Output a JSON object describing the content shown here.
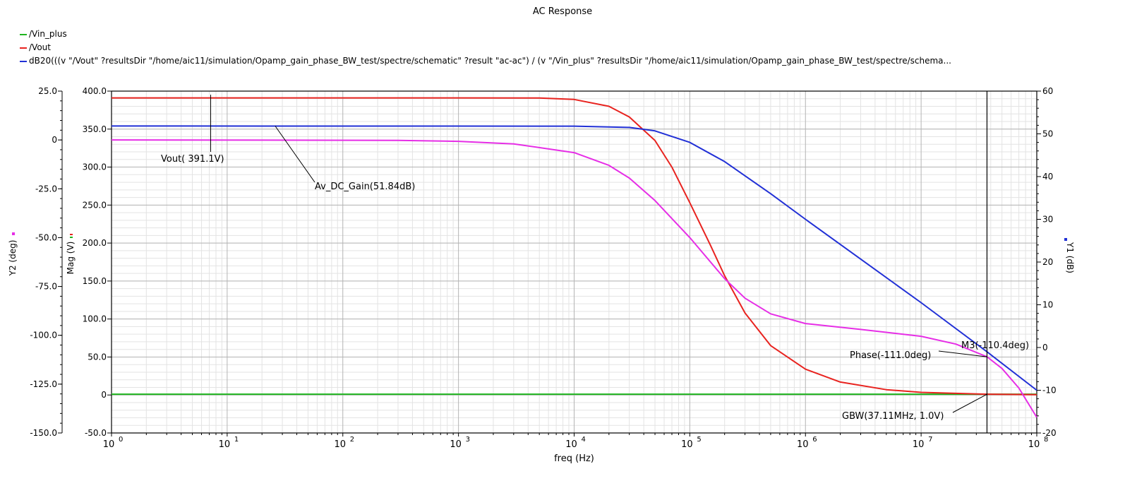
{
  "chart_data": {
    "type": "line",
    "title": "AC Response",
    "legend": [
      {
        "label": "/Vin_plus",
        "color": "#1fb51f"
      },
      {
        "label": "/Vout",
        "color": "#e8231f"
      },
      {
        "label": "dB20(((v \"/Vout\" ?resultsDir \"/home/aic11/simulation/Opamp_gain_phase_BW_test/spectre/schematic\" ?result \"ac-ac\") / (v \"/Vin_plus\" ?resultsDir \"/home/aic11/simulation/Opamp_gain_phase_BW_test/spectre/schema...",
        "color": "#2130d6"
      }
    ],
    "xlabel": "freq (Hz)",
    "x_scale": "log",
    "xlim": [
      1,
      100000000
    ],
    "x_ticks": [
      {
        "base": "10",
        "exp": "0"
      },
      {
        "base": "10",
        "exp": "1"
      },
      {
        "base": "10",
        "exp": "2"
      },
      {
        "base": "10",
        "exp": "3"
      },
      {
        "base": "10",
        "exp": "4"
      },
      {
        "base": "10",
        "exp": "5"
      },
      {
        "base": "10",
        "exp": "6"
      },
      {
        "base": "10",
        "exp": "7"
      },
      {
        "base": "10",
        "exp": "8"
      }
    ],
    "axes": {
      "mag": {
        "label": "Mag (V)",
        "lim": [
          -50,
          400
        ],
        "ticks": [
          -50,
          0,
          50,
          100,
          150,
          200,
          250,
          300,
          350,
          400
        ],
        "tick_labels": [
          "-50.0",
          "0",
          "50.0",
          "100.0",
          "150.0",
          "200.0",
          "250.0",
          "300.0",
          "350.0",
          "400.0"
        ]
      },
      "y2": {
        "label": "Y2 (deg)",
        "lim": [
          -150,
          25
        ],
        "ticks": [
          -150,
          -125,
          -100,
          -75,
          -50,
          -25,
          0,
          25
        ],
        "tick_labels": [
          "-150.0",
          "-125.0",
          "-100.0",
          "-75.0",
          "-50.0",
          "-25.0",
          "0",
          "25.0"
        ]
      },
      "y1": {
        "label": "Y1 (dB)",
        "lim": [
          -20,
          60
        ],
        "ticks": [
          -20,
          -10,
          0,
          10,
          20,
          30,
          40,
          50,
          60
        ],
        "tick_labels": [
          "-20",
          "-10",
          "0",
          "10",
          "20",
          "30",
          "40",
          "50",
          "60"
        ]
      }
    },
    "grid": true,
    "series": [
      {
        "name": "/Vin_plus",
        "axis": "mag",
        "color": "#1fb51f",
        "x": [
          1,
          100000000
        ],
        "y": [
          1,
          1
        ]
      },
      {
        "name": "/Vout",
        "axis": "mag",
        "color": "#e8231f",
        "x": [
          1,
          1000,
          5000,
          10000,
          20000,
          30000,
          50000,
          70000,
          100000,
          150000,
          200000,
          300000,
          500000,
          1000000,
          2000000,
          5000000,
          10000000,
          37110000,
          100000000
        ],
        "y": [
          391.1,
          391.1,
          391,
          389,
          380,
          366,
          335,
          300,
          253,
          198,
          157,
          108,
          65,
          34,
          17,
          7,
          3.5,
          1.0,
          0.5
        ]
      },
      {
        "name": "dB20",
        "axis": "y1",
        "color": "#2130d6",
        "x": [
          1,
          10000,
          30000,
          50000,
          100000,
          200000,
          500000,
          1000000,
          10000000,
          37110000,
          100000000
        ],
        "y": [
          51.84,
          51.8,
          51.5,
          50.7,
          48,
          43.5,
          36,
          30,
          10.5,
          -1,
          -10
        ]
      },
      {
        "name": "phase",
        "axis": "y2",
        "color": "#e62ee6",
        "x": [
          1,
          300,
          1000,
          3000,
          10000,
          20000,
          30000,
          50000,
          100000,
          200000,
          300000,
          500000,
          1000000,
          3000000,
          10000000,
          20000000,
          37110000,
          50000000,
          70000000,
          100000000
        ],
        "y": [
          0,
          -0.2,
          -0.7,
          -2,
          -6.5,
          -13,
          -19.5,
          -31,
          -50,
          -71,
          -81,
          -89,
          -94,
          -97,
          -100.5,
          -104.5,
          -111,
          -117,
          -127,
          -142
        ]
      }
    ],
    "annotations": [
      {
        "text": "Vout( 391.1V)",
        "color": "#000000"
      },
      {
        "text": "Av_DC_Gain(51.84dB)",
        "color": "#000000"
      },
      {
        "text": "M3(-110.4deg)",
        "color": "#000000"
      },
      {
        "text": "Phase(-111.0deg)",
        "color": "#000000"
      },
      {
        "text": "GBW(37.11MHz, 1.0V)",
        "color": "#000000"
      }
    ]
  }
}
